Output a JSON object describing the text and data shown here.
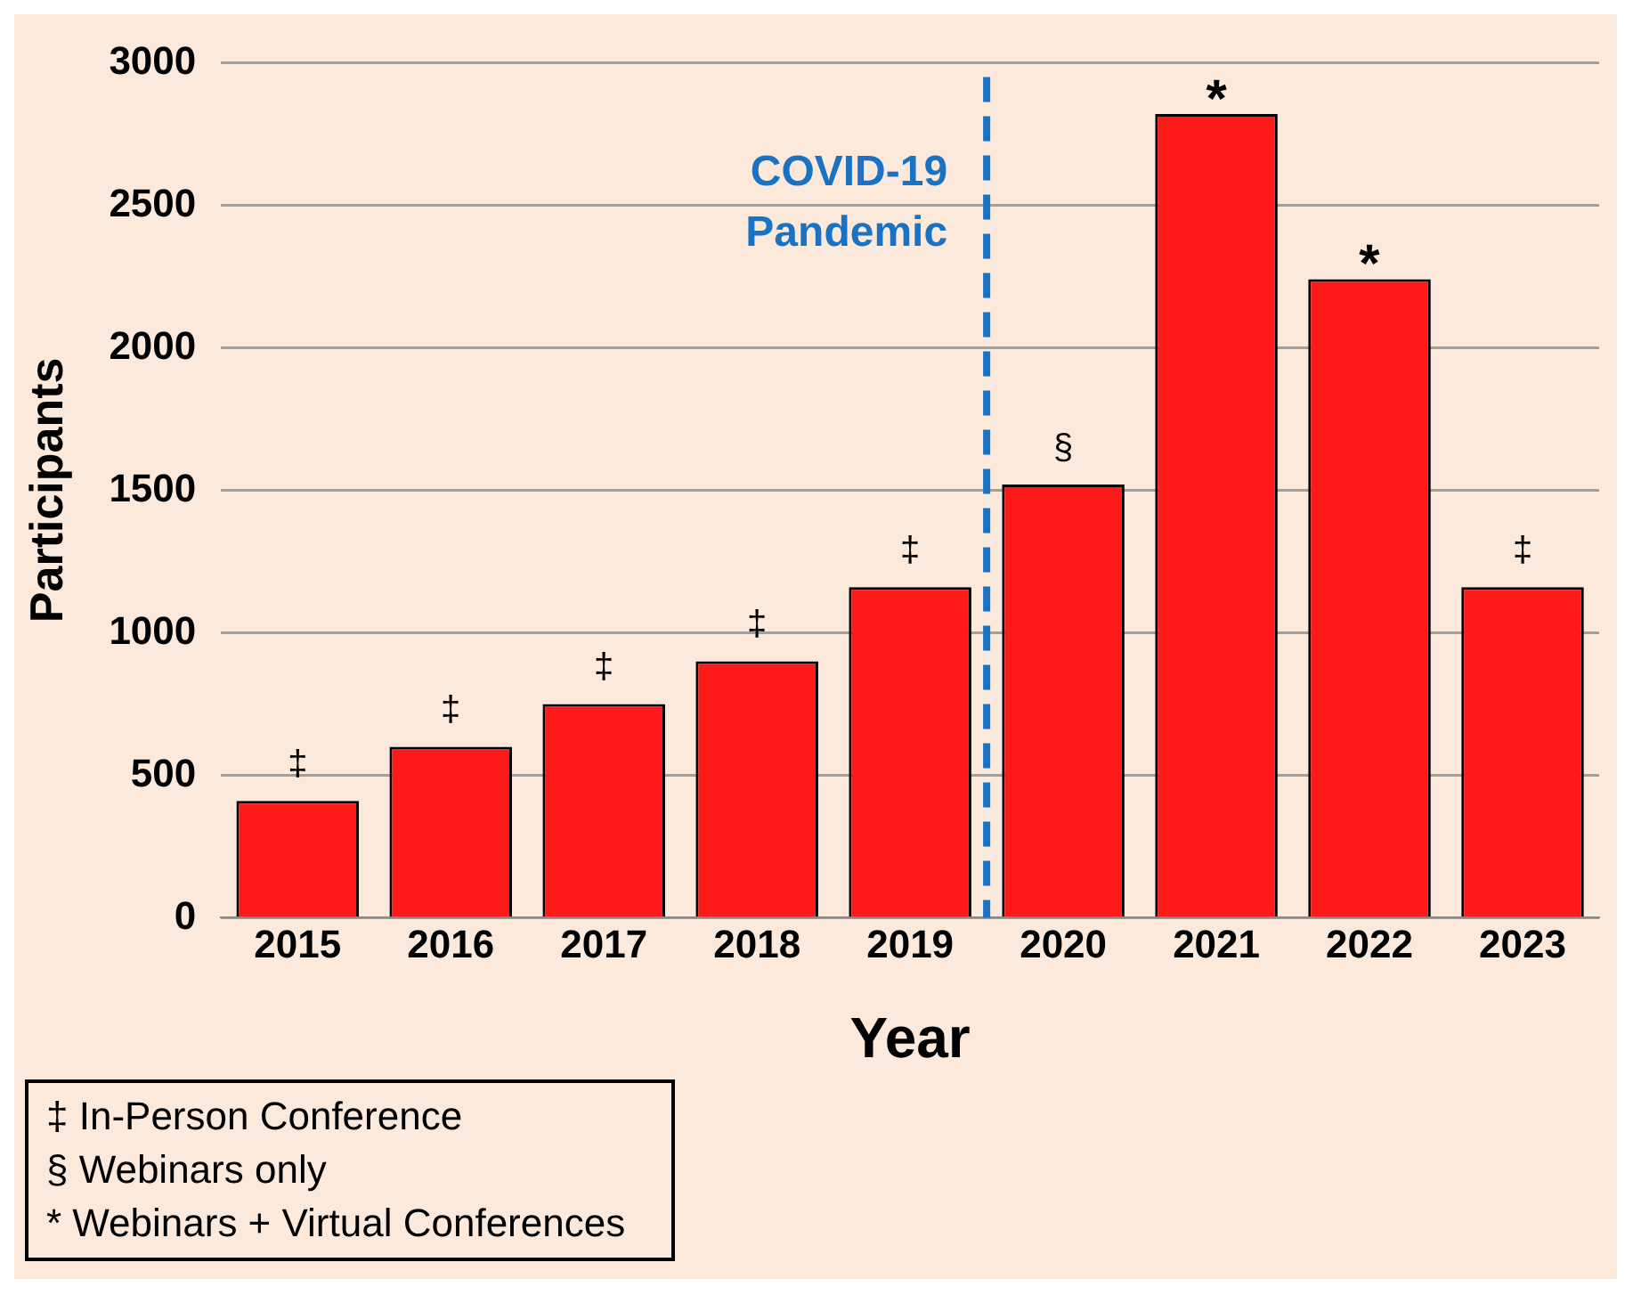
{
  "chart_data": {
    "type": "bar",
    "xlabel": "Year",
    "ylabel": "Participants",
    "x": [
      2015,
      2016,
      2017,
      2018,
      2019,
      2020,
      2021,
      2022,
      2023
    ],
    "values": [
      410,
      600,
      750,
      900,
      1160,
      1520,
      2820,
      2240,
      1160
    ],
    "color": "#ff1a1a",
    "xlim": [
      2014.5,
      2023.5
    ],
    "xticks": [
      2015,
      2016,
      2017,
      2018,
      2019,
      2020,
      2021,
      2022,
      2023
    ],
    "ylim": [
      0,
      3000
    ],
    "yticks": [
      0,
      500,
      1000,
      1500,
      2000,
      2500,
      3000
    ],
    "grid": "y",
    "legend": false,
    "ref_lines": [
      {
        "axis": "x",
        "value": 2019.5,
        "label": "COVID-19 Pandemic",
        "color": "#1a72c4",
        "line_style": "dashed"
      }
    ],
    "annotations": [
      {
        "text": "‡",
        "x": 2015,
        "y": 410
      },
      {
        "text": "‡",
        "x": 2016,
        "y": 600
      },
      {
        "text": "‡",
        "x": 2017,
        "y": 750
      },
      {
        "text": "‡",
        "x": 2018,
        "y": 900
      },
      {
        "text": "‡",
        "x": 2019,
        "y": 1160
      },
      {
        "text": "§",
        "x": 2020,
        "y": 1520
      },
      {
        "text": "*",
        "x": 2021,
        "y": 2820
      },
      {
        "text": "*",
        "x": 2022,
        "y": 2240
      },
      {
        "text": "‡",
        "x": 2023,
        "y": 1160
      },
      "‡ In-Person Conference",
      "§  Webinars only",
      "* Webinars + Virtual Conferences"
    ]
  }
}
